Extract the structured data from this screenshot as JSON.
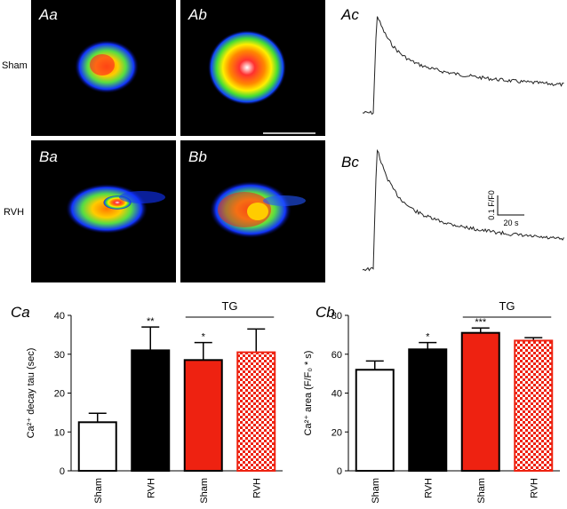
{
  "images": {
    "labels": [
      "Aa",
      "Ab",
      "Ba",
      "Bb"
    ],
    "row_labels": [
      "Sham",
      "RVH"
    ]
  },
  "traces": {
    "labels": [
      "Ac",
      "Bc"
    ],
    "scale_y": "0.1 F/F0",
    "scale_x": "20 s"
  },
  "chart_data": [
    {
      "type": "bar",
      "panel_label": "Ca",
      "ylabel": "Ca²⁺ decay tau (sec)",
      "categories": [
        "Sham",
        "RVH",
        "Sham",
        "RVH"
      ],
      "values": [
        12.5,
        31,
        28.5,
        30.5
      ],
      "errors": [
        2.3,
        6,
        4.5,
        6
      ],
      "colors": [
        "#ffffff",
        "#000000",
        "#ee2211",
        "#ee2211"
      ],
      "checkered": [
        false,
        false,
        false,
        true
      ],
      "significance": [
        null,
        "**",
        "*",
        null
      ],
      "group": {
        "label": "TG",
        "categories": [
          2,
          3
        ]
      },
      "ylim": [
        0,
        40
      ],
      "yticks": [
        0,
        10,
        20,
        30,
        40
      ]
    },
    {
      "type": "bar",
      "panel_label": "Cb",
      "ylabel": "Ca²⁺ area (F/F₀ * s)",
      "categories": [
        "Sham",
        "RVH",
        "Sham",
        "RVH"
      ],
      "values": [
        52,
        62.5,
        71,
        67
      ],
      "errors": [
        4.5,
        3.5,
        2.5,
        1.5
      ],
      "colors": [
        "#ffffff",
        "#000000",
        "#ee2211",
        "#ee2211"
      ],
      "checkered": [
        false,
        false,
        false,
        true
      ],
      "significance": [
        null,
        "*",
        "***",
        null
      ],
      "group": {
        "label": "TG",
        "categories": [
          2,
          3
        ]
      },
      "ylim": [
        0,
        80
      ],
      "yticks": [
        0,
        20,
        40,
        60,
        80
      ]
    }
  ]
}
